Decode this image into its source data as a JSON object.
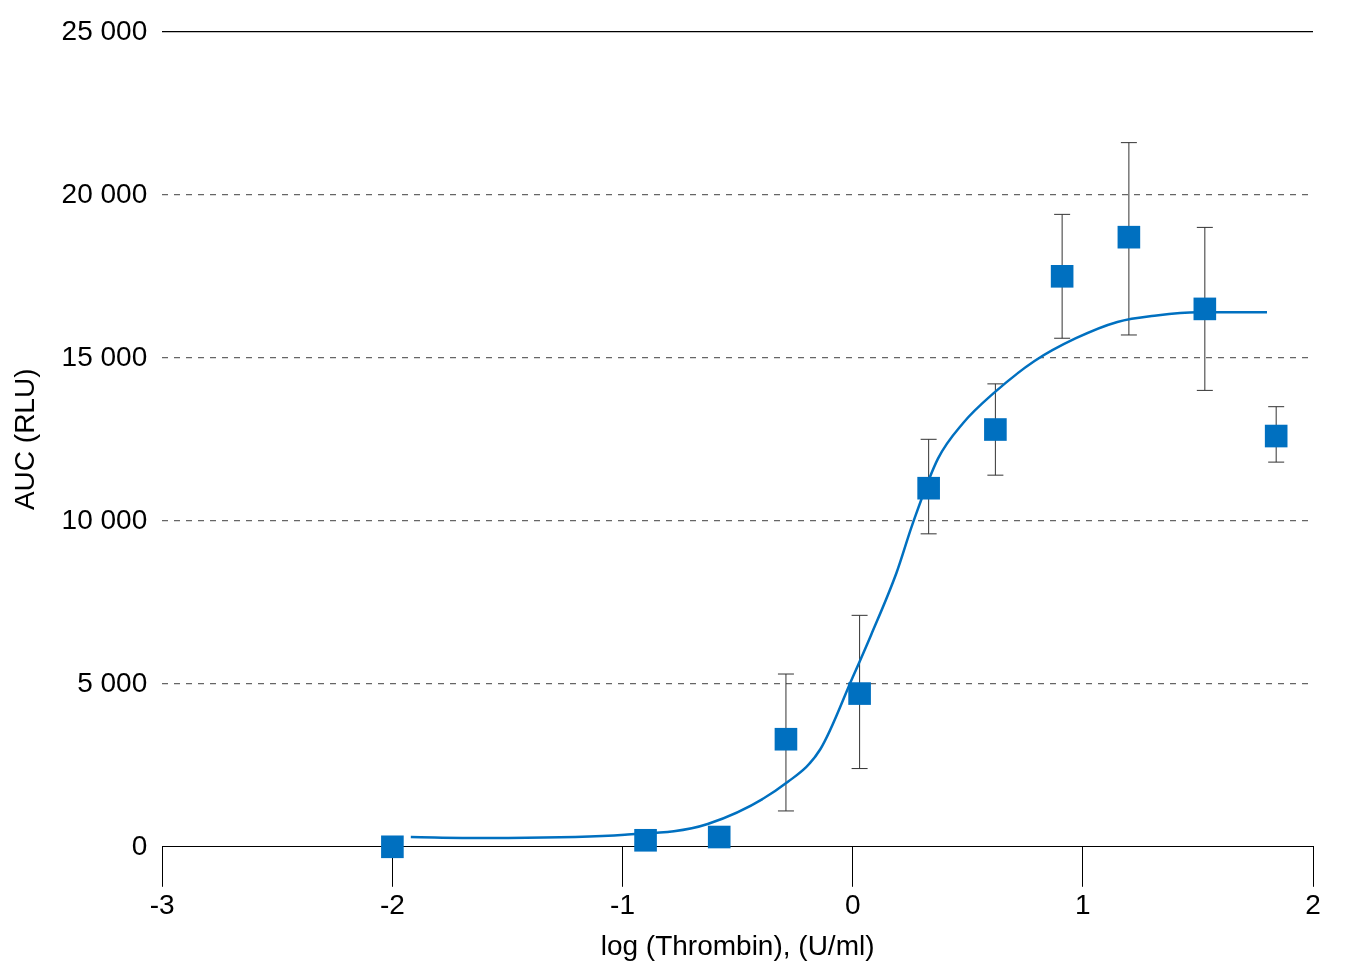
{
  "chart_data": {
    "type": "scatter",
    "xlabel": "log (Thrombin), (U/ml)",
    "ylabel": "AUC (RLU)",
    "xlim": [
      -3,
      2
    ],
    "xticks": [
      -3,
      -2,
      -1,
      0,
      1,
      2
    ],
    "ylim": [
      0,
      25000
    ],
    "yticks": [
      0,
      {
        "value": 5000,
        "label": "5 000"
      },
      {
        "value": 10000,
        "label": "10 000"
      },
      {
        "value": 15000,
        "label": "15 000"
      },
      {
        "value": 20000,
        "label": "20 000"
      },
      {
        "value": 25000,
        "label": "25 000"
      }
    ],
    "grid": "y",
    "legend": false,
    "marker": "square",
    "series": [
      {
        "color": "#0070c0",
        "x": [
          -2.0,
          -0.9,
          -0.58,
          -0.29,
          0.03,
          0.33,
          0.62,
          0.91,
          1.2,
          1.53,
          1.84
        ],
        "values": [
          0,
          200,
          300,
          3300,
          4700,
          11000,
          12800,
          17500,
          18700,
          16500,
          12600
        ],
        "errors": [
          null,
          null,
          null,
          [
            1100,
            5300
          ],
          [
            2400,
            7100
          ],
          [
            9600,
            12500
          ],
          [
            11400,
            14200
          ],
          [
            15600,
            19400
          ],
          [
            15700,
            21600
          ],
          [
            14000,
            19000
          ],
          [
            11800,
            13500
          ]
        ]
      },
      {
        "type": "line",
        "color": "#0070c0",
        "marker": "none",
        "x": [
          -1.92,
          -1.61,
          -0.99,
          -0.63,
          -0.28,
          -0.14,
          0,
          0.08,
          0.19,
          0.26,
          0.37,
          0.48,
          0.61,
          0.79,
          0.97,
          1.15,
          1.32,
          1.5,
          1.8
        ],
        "values": [
          300,
          270,
          370,
          700,
          2000,
          3000,
          5200,
          6500,
          8400,
          9900,
          11900,
          13000,
          13900,
          14900,
          15600,
          16100,
          16300,
          16400,
          16400
        ]
      }
    ]
  }
}
